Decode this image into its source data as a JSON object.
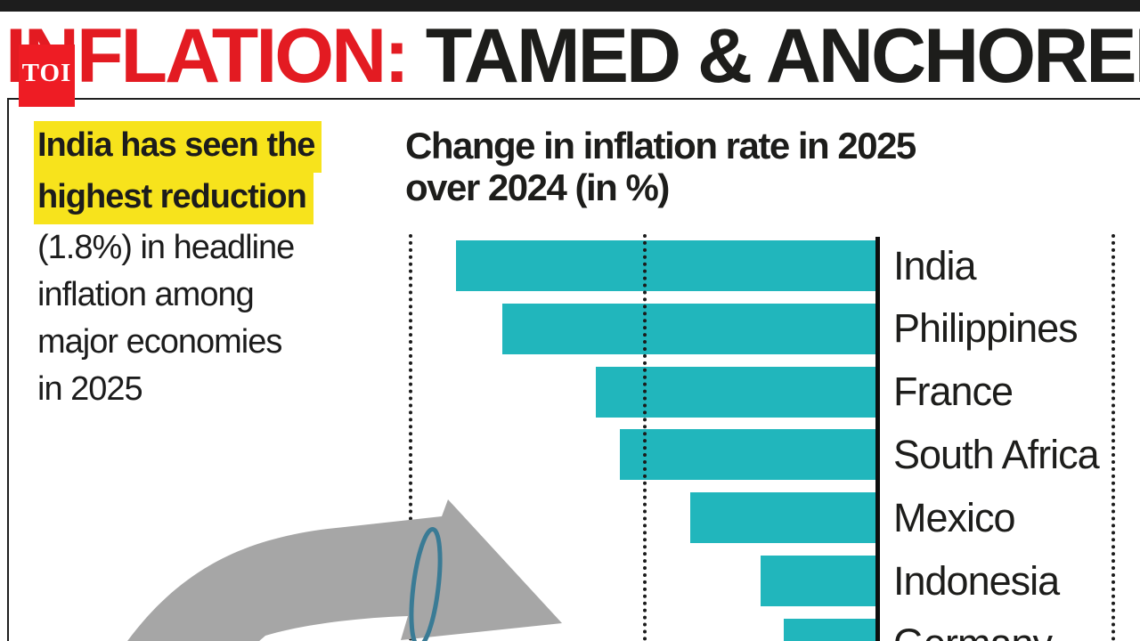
{
  "logo": {
    "text": "TOI",
    "bg_color": "#ee1c24"
  },
  "header": {
    "title_red": "INFLATION:",
    "title_black": " TAMED & ANCHORED",
    "red_color": "#e31b22",
    "black_color": "#1d1d1b"
  },
  "intro": {
    "highlight_lines": [
      "India has seen the",
      "highest reduction"
    ],
    "lines": [
      "(1.8%) in headline",
      "inflation among",
      "major economies",
      "in 2025"
    ],
    "highlight_color": "#f7e31c"
  },
  "chart_data": {
    "type": "bar",
    "orientation": "horizontal",
    "title": "Change in inflation rate in 2025 over 2024 (in %)",
    "title_lines": [
      "Change in inflation rate in 2025",
      "over 2024 (in %)"
    ],
    "categories": [
      "India",
      "Philippines",
      "France",
      "South Africa",
      "Mexico",
      "Indonesia",
      "Germany"
    ],
    "values": [
      -1.8,
      -1.6,
      -1.2,
      -1.1,
      -0.8,
      -0.5,
      -0.4
    ],
    "unit": "%",
    "xlim": [
      -2.1,
      1.1
    ],
    "gridlines": [
      -2,
      -1,
      1
    ],
    "zero_axis": 0,
    "grid_style": "dotted-vertical",
    "bar_color": "#21b6bc",
    "category_labels_position": "right-of-zero-axis",
    "value_labels_shown": false
  },
  "decoration": {
    "arrow_color": "#a6a6a6",
    "ring_color": "#3a7b95"
  }
}
